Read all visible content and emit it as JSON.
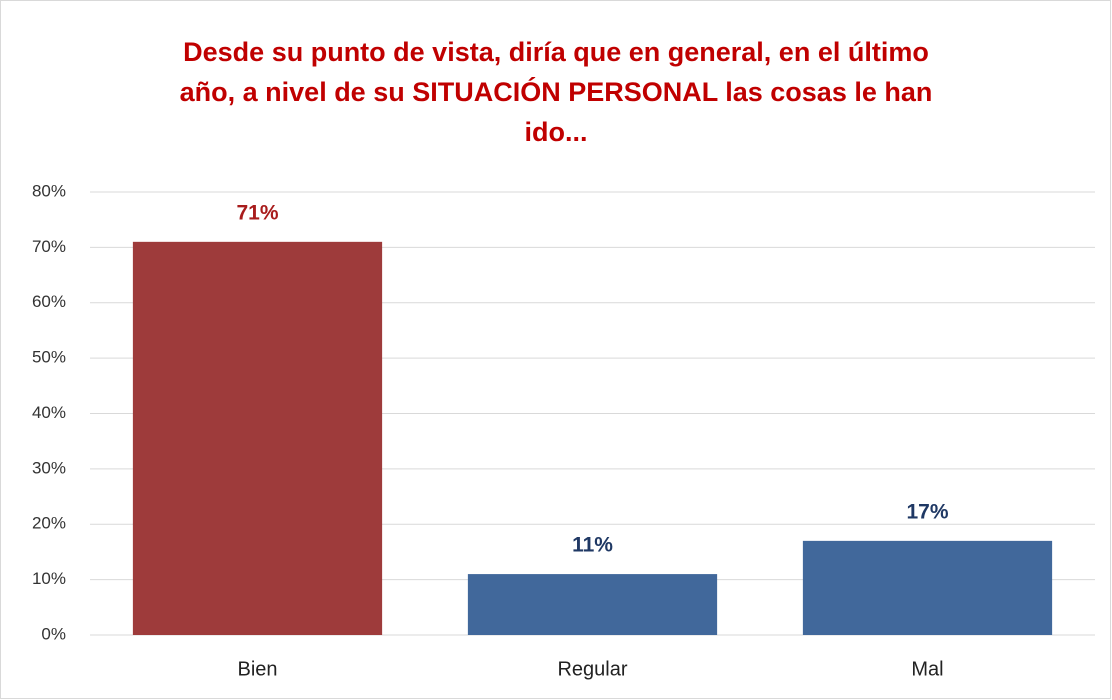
{
  "chart_data": {
    "type": "bar",
    "title": "Desde su punto de vista, diría que en general, en el último año, a nivel de su SITUACIÓN PERSONAL las cosas le han ido...",
    "categories": [
      "Bien",
      "Regular",
      "Mal"
    ],
    "values": [
      71,
      11,
      17
    ],
    "value_labels": [
      "71%",
      "11%",
      "17%"
    ],
    "colors": [
      "#9e3b3b",
      "#41689b",
      "#41689b"
    ],
    "label_colors": [
      "#a81c1c",
      "#1f3864",
      "#1f3864"
    ],
    "ylim": [
      0,
      80
    ],
    "yticks": [
      {
        "value": 0,
        "label": "0%"
      },
      {
        "value": 10,
        "label": "10%"
      },
      {
        "value": 20,
        "label": "20%"
      },
      {
        "value": 30,
        "label": "30%"
      },
      {
        "value": 40,
        "label": "40%"
      },
      {
        "value": 50,
        "label": "50%"
      },
      {
        "value": 60,
        "label": "60%"
      },
      {
        "value": 70,
        "label": "70%"
      },
      {
        "value": 80,
        "label": "80%"
      }
    ],
    "grid": true
  }
}
